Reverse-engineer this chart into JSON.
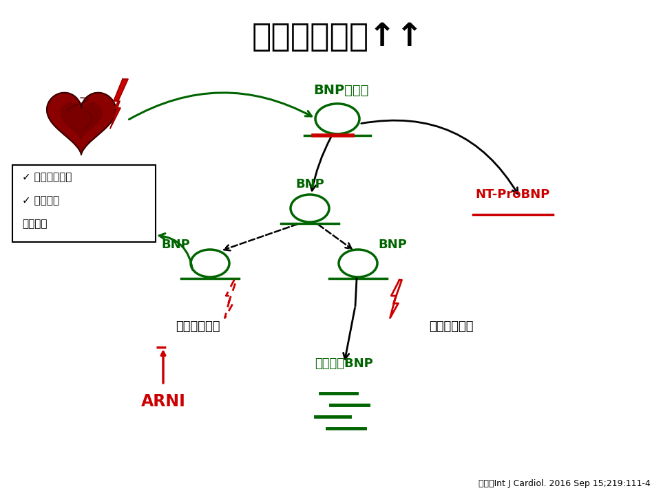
{
  "title": "左心室充満圧↑↑",
  "title_fontsize": 34,
  "bg_color": "#ffffff",
  "GREEN": "#006400",
  "RED": "#cc0000",
  "BLACK": "#000000",
  "ref_text": "参考：Int J Cardiol. 2016 Sep 15;219:111-4",
  "label_BNP_precursor": "BNP前駆体",
  "label_BNP1": "BNP",
  "label_BNP2": "BNP",
  "label_BNP3": "BNP",
  "label_NT": "NT-ProBNP",
  "label_inactive": "不活性化BNP",
  "label_neprilysin1": "ネプライシン",
  "label_neprilysin2": "ネプライシン",
  "label_ARNI": "ARNI",
  "effect_line1": "✓ 血管拡張作用",
  "effect_line2": "✓ 利尿作用",
  "effect_line3": "　　など",
  "heart_color": "#8B0000"
}
